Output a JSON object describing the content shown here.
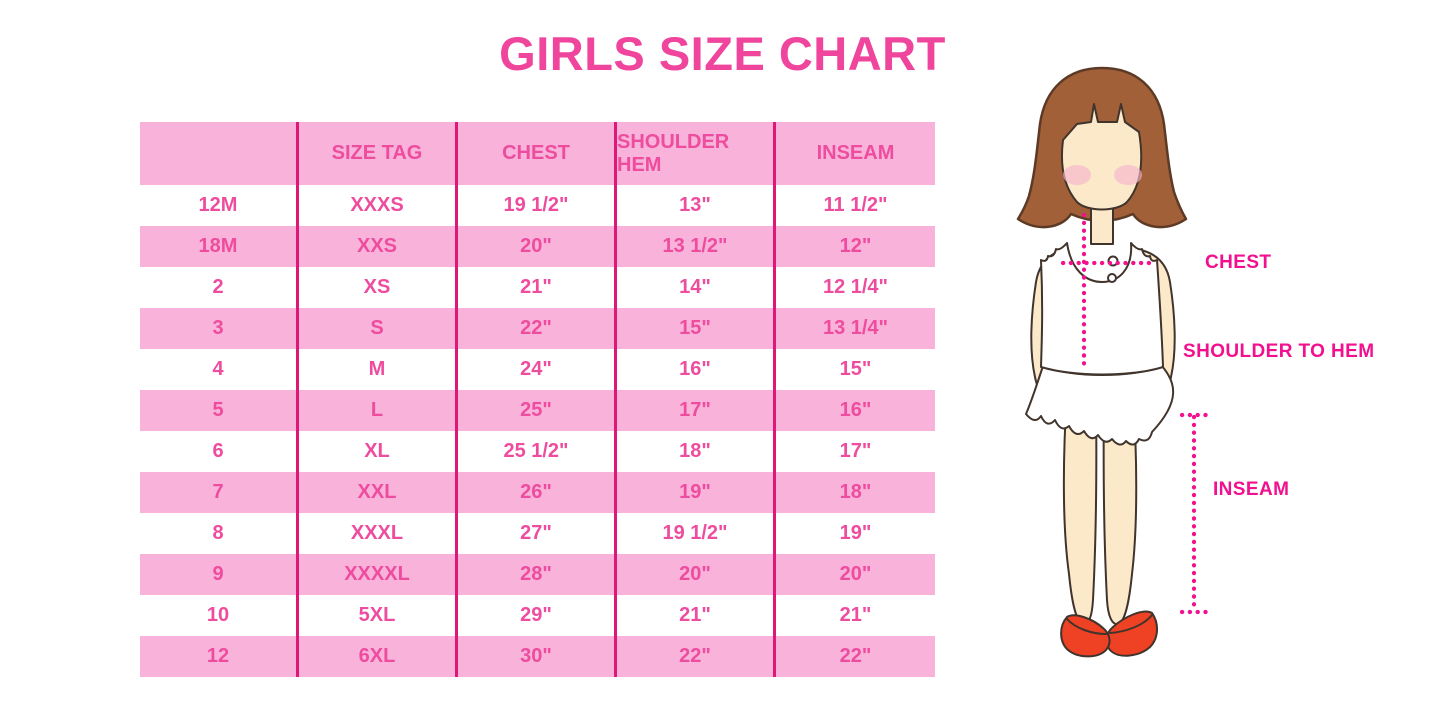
{
  "title": "GIRLS SIZE CHART",
  "theme": {
    "title_pink": "#F0459C",
    "band_pink": "#F9B2DA",
    "row_white": "#FFFFFF",
    "cell_text_pink": "#EE4C9E",
    "grid_line_pink": "#DF1878",
    "label_magenta": "#F2108E",
    "skin": "#FBE9C9",
    "hair_brown": "#A26038",
    "shoe_red": "#EF4123",
    "blush_pink": "#F5B5CC"
  },
  "chart_data": {
    "type": "table",
    "title": "GIRLS SIZE CHART",
    "columns": [
      "",
      "SIZE TAG",
      "CHEST",
      "SHOULDER HEM",
      "INSEAM"
    ],
    "rows": [
      [
        "12M",
        "XXXS",
        "19 1/2\"",
        "13\"",
        "11 1/2\""
      ],
      [
        "18M",
        "XXS",
        "20\"",
        "13 1/2\"",
        "12\""
      ],
      [
        "2",
        "XS",
        "21\"",
        "14\"",
        "12 1/4\""
      ],
      [
        "3",
        "S",
        "22\"",
        "15\"",
        "13 1/4\""
      ],
      [
        "4",
        "M",
        "24\"",
        "16\"",
        "15\""
      ],
      [
        "5",
        "L",
        "25\"",
        "17\"",
        "16\""
      ],
      [
        "6",
        "XL",
        "25 1/2\"",
        "18\"",
        "17\""
      ],
      [
        "7",
        "XXL",
        "26\"",
        "19\"",
        "18\""
      ],
      [
        "8",
        "XXXL",
        "27\"",
        "19 1/2\"",
        "19\""
      ],
      [
        "9",
        "XXXXL",
        "28\"",
        "20\"",
        "20\""
      ],
      [
        "10",
        "5XL",
        "29\"",
        "21\"",
        "21\""
      ],
      [
        "12",
        "6XL",
        "30\"",
        "22\"",
        "22\""
      ]
    ],
    "layout": {
      "striped": true,
      "stripe_order": "white-first",
      "header_fill": "pink",
      "vertical_rules_only": true,
      "legend_position": "none"
    }
  },
  "figure": {
    "labels": {
      "chest": "CHEST",
      "shoulder_to_hem": "SHOULDER TO HEM",
      "inseam": "INSEAM"
    }
  }
}
